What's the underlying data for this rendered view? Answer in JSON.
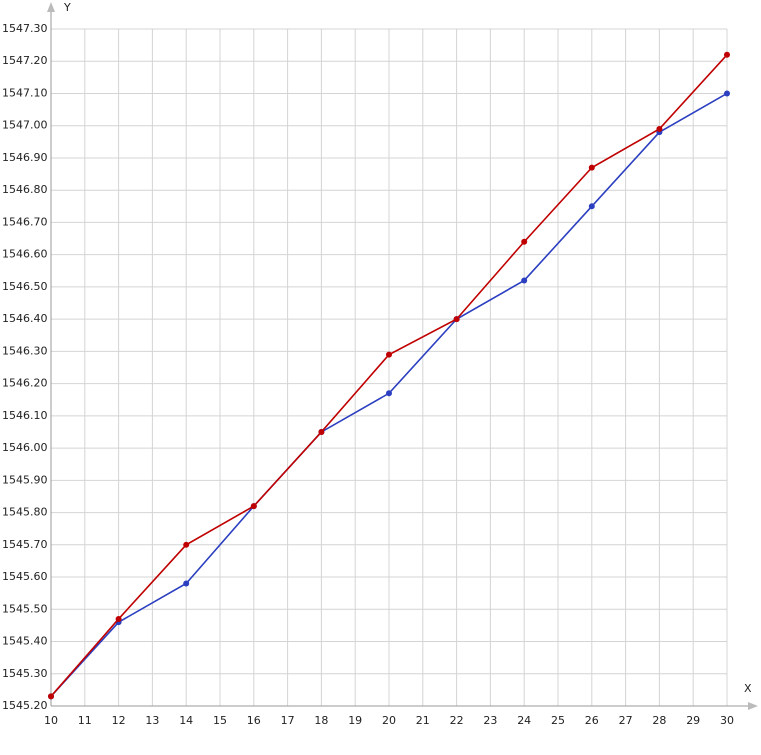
{
  "chart_data": {
    "type": "line",
    "x_label": "X",
    "y_label": "Y",
    "x": [
      10,
      12,
      14,
      16,
      18,
      20,
      22,
      24,
      26,
      28,
      30
    ],
    "series": [
      {
        "color": "#2b3fc0",
        "values": [
          1545.23,
          1545.46,
          1545.58,
          1545.82,
          1546.05,
          1546.17,
          1546.4,
          1546.52,
          1546.75,
          1546.98,
          1547.1
        ]
      },
      {
        "color": "#c00000",
        "values": [
          1545.23,
          1545.47,
          1545.7,
          1545.82,
          1546.05,
          1546.29,
          1546.4,
          1546.64,
          1546.87,
          1546.99,
          1547.22
        ]
      }
    ],
    "xlim": [
      10,
      30
    ],
    "xticks": [
      10,
      11,
      12,
      13,
      14,
      15,
      16,
      17,
      18,
      19,
      20,
      21,
      22,
      23,
      24,
      25,
      26,
      27,
      28,
      29,
      30
    ],
    "ylim": [
      1545.2,
      1547.3
    ],
    "yticks": [
      {
        "value": 1545.2,
        "label": "1545.20"
      },
      {
        "value": 1545.3,
        "label": "1545.30"
      },
      {
        "value": 1545.4,
        "label": "1545.40"
      },
      {
        "value": 1545.5,
        "label": "1545.50"
      },
      {
        "value": 1545.6,
        "label": "1545.60"
      },
      {
        "value": 1545.7,
        "label": "1545.70"
      },
      {
        "value": 1545.8,
        "label": "1545.80"
      },
      {
        "value": 1545.9,
        "label": "1545.90"
      },
      {
        "value": 1546.0,
        "label": "1546.00"
      },
      {
        "value": 1546.1,
        "label": "1546.10"
      },
      {
        "value": 1546.2,
        "label": "1546.20"
      },
      {
        "value": 1546.3,
        "label": "1546.30"
      },
      {
        "value": 1546.4,
        "label": "1546.40"
      },
      {
        "value": 1546.5,
        "label": "1546.50"
      },
      {
        "value": 1546.6,
        "label": "1546.60"
      },
      {
        "value": 1546.7,
        "label": "1546.70"
      },
      {
        "value": 1546.8,
        "label": "1546.80"
      },
      {
        "value": 1546.9,
        "label": "1546.90"
      },
      {
        "value": 1547.0,
        "label": "1547.00"
      },
      {
        "value": 1547.1,
        "label": "1547.10"
      },
      {
        "value": 1547.2,
        "label": "1547.20"
      },
      {
        "value": 1547.3,
        "label": "1547.30"
      }
    ],
    "grid": true
  }
}
